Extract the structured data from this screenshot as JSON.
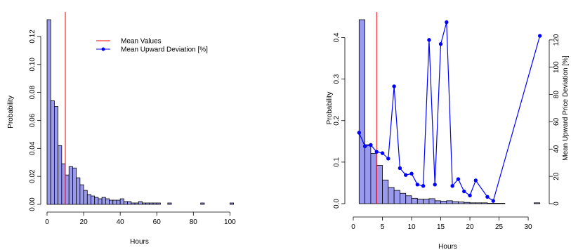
{
  "colors": {
    "bar_fill": "#9999ee",
    "bar_stroke": "#000000",
    "mean_line": "#ff0000",
    "deviation_line": "#0000ff"
  },
  "chart_data": [
    {
      "type": "bar",
      "title": "",
      "xlabel": "Hours",
      "ylabel": "Probability",
      "xlim": [
        0,
        101
      ],
      "ylim": [
        0,
        0.132
      ],
      "xticks": [
        "0",
        "20",
        "40",
        "60",
        "80",
        "100"
      ],
      "yticks": [
        "0.00",
        "0.02",
        "0.04",
        "0.06",
        "0.08",
        "0.10",
        "0.12"
      ],
      "bin_width": 2,
      "bins_start": [
        0,
        2,
        4,
        6,
        8,
        10,
        12,
        14,
        16,
        18,
        20,
        22,
        24,
        26,
        28,
        30,
        32,
        34,
        36,
        38,
        40,
        42,
        44,
        46,
        48,
        50,
        52,
        54,
        56,
        58,
        60,
        62,
        64,
        66,
        68,
        70,
        72,
        74,
        76,
        78,
        80,
        82,
        84,
        86,
        88,
        90,
        92,
        94,
        96,
        98,
        100
      ],
      "values": [
        0.132,
        0.074,
        0.07,
        0.042,
        0.029,
        0.021,
        0.027,
        0.026,
        0.019,
        0.014,
        0.01,
        0.007,
        0.006,
        0.005,
        0.004,
        0.005,
        0.004,
        0.003,
        0.003,
        0.003,
        0.004,
        0.002,
        0.002,
        0.001,
        0.001,
        0.002,
        0.001,
        0.001,
        0.001,
        0.001,
        0.001,
        0,
        0,
        0.001,
        0,
        0,
        0,
        0,
        0,
        0,
        0,
        0,
        0.001,
        0,
        0,
        0,
        0,
        0,
        0,
        0,
        0.001
      ],
      "mean_line_x": 10,
      "legend": {
        "position": "top-right",
        "entries": [
          {
            "label": "Mean Values",
            "color": "#ff0000",
            "marker": "line"
          },
          {
            "label": "Mean Upward Deviation [%]",
            "color": "#0000ff",
            "marker": "line-point"
          }
        ]
      }
    },
    {
      "type": "bar",
      "title": "",
      "xlabel": "Hours",
      "ylabel": "Probability",
      "y2label": "Mean Upward Price Deviation [%]",
      "xlim": [
        0,
        32.4
      ],
      "ylim": [
        0,
        0.46
      ],
      "y2lim": [
        0,
        140
      ],
      "xticks": [
        "0",
        "5",
        "10",
        "15",
        "20",
        "25",
        "30"
      ],
      "yticks": [
        "0.0",
        "0.1",
        "0.2",
        "0.3",
        "0.4"
      ],
      "y2ticks": [
        "0",
        "20",
        "40",
        "60",
        "80",
        "100",
        "120"
      ],
      "bin_width": 1,
      "bins_start": [
        1,
        2,
        3,
        4,
        5,
        6,
        7,
        8,
        9,
        10,
        11,
        12,
        13,
        14,
        15,
        16,
        17,
        18,
        19,
        20,
        21,
        22,
        23,
        24,
        25,
        26,
        27,
        28,
        29,
        30,
        31
      ],
      "values": [
        0.443,
        0.142,
        0.121,
        0.092,
        0.057,
        0.039,
        0.032,
        0.025,
        0.019,
        0.013,
        0.011,
        0.011,
        0.012,
        0.007,
        0.006,
        0.007,
        0.005,
        0.004,
        0.003,
        0.002,
        0.002,
        0.002,
        0.001,
        0.001,
        0.001,
        0,
        0,
        0,
        0,
        0,
        0.002
      ],
      "mean_line_x": 4,
      "series": [
        {
          "name": "Mean Upward Deviation [%]",
          "x": [
            1,
            2,
            3,
            4,
            5,
            6,
            7,
            8,
            9,
            10,
            11,
            12,
            13,
            14,
            15,
            16,
            17,
            18,
            19,
            20,
            21,
            23,
            24,
            32
          ],
          "values": [
            52,
            42,
            43,
            38,
            37,
            33,
            86,
            26,
            21,
            22,
            14,
            13,
            120,
            14,
            117,
            133,
            13,
            18,
            9,
            6,
            17,
            5,
            2,
            123
          ]
        }
      ]
    }
  ]
}
